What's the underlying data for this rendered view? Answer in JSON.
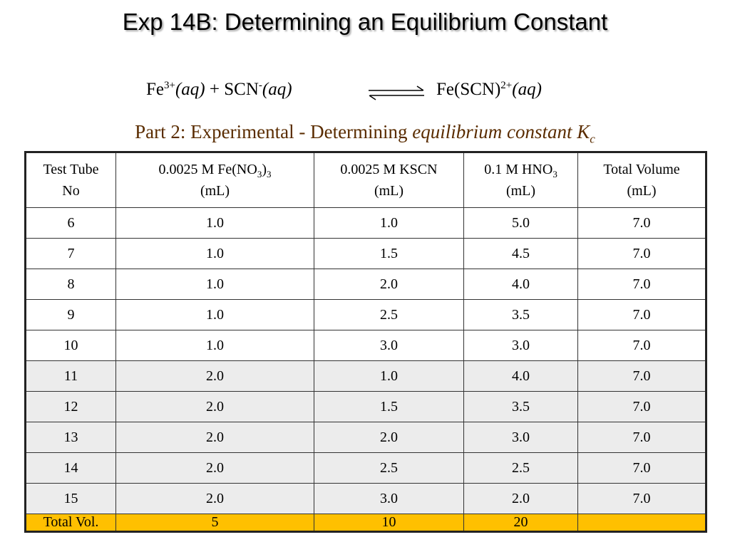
{
  "title": "Exp 14B: Determining an Equilibrium Constant",
  "equation": {
    "fe": "Fe",
    "fe_charge": "3+",
    "fe_state": "(aq)",
    "plus": "+",
    "scn": "SCN",
    "scn_charge": "-",
    "scn_state": "(aq)",
    "product": "Fe(SCN)",
    "product_charge": "2+",
    "product_state": "(aq)"
  },
  "subtitle": {
    "text": "Part 2: Experimental - Determining",
    "emphasis": "equilibrium constant K",
    "subscript": "c"
  },
  "table": {
    "headers": [
      [
        [
          "Test Tube"
        ],
        [
          "No"
        ]
      ],
      [
        [
          "0.0025 M Fe(NO",
          {
            "sub": "3"
          },
          ")",
          {
            "sub": "3"
          }
        ],
        [
          "(mL)"
        ]
      ],
      [
        [
          "0.0025 M KSCN"
        ],
        [
          "(mL)"
        ]
      ],
      [
        [
          "0.1 M HNO",
          {
            "sub": "3"
          }
        ],
        [
          "(mL)"
        ]
      ],
      [
        [
          "Total Volume"
        ],
        [
          "(mL)"
        ]
      ]
    ],
    "rows": [
      [
        "6",
        "1.0",
        "1.0",
        "5.0",
        "7.0"
      ],
      [
        "7",
        "1.0",
        "1.5",
        "4.5",
        "7.0"
      ],
      [
        "8",
        "1.0",
        "2.0",
        "4.0",
        "7.0"
      ],
      [
        "9",
        "1.0",
        "2.5",
        "3.5",
        "7.0"
      ],
      [
        "10",
        "1.0",
        "3.0",
        "3.0",
        "7.0"
      ],
      [
        "11",
        "2.0",
        "1.0",
        "4.0",
        "7.0"
      ],
      [
        "12",
        "2.0",
        "1.5",
        "3.5",
        "7.0"
      ],
      [
        "13",
        "2.0",
        "2.0",
        "3.0",
        "7.0"
      ],
      [
        "14",
        "2.0",
        "2.5",
        "2.5",
        "7.0"
      ],
      [
        "15",
        "2.0",
        "3.0",
        "2.0",
        "7.0"
      ]
    ],
    "footer": [
      "Total Vol.",
      "5",
      "10",
      "20"
    ]
  }
}
